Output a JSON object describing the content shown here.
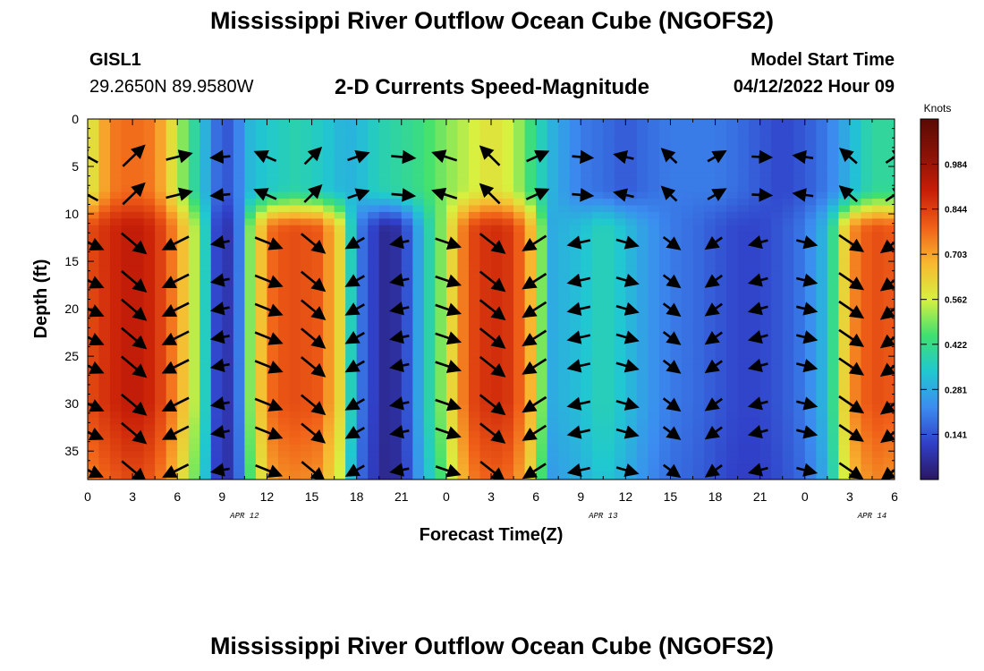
{
  "titles": {
    "main": "Mississippi River Outflow Ocean Cube (NGOFS2)",
    "bottom": "Mississippi River Outflow Ocean Cube (NGOFS2)"
  },
  "station": {
    "id": "GISL1",
    "coords": "29.2650N  89.9580W"
  },
  "model_start": {
    "label": "Model Start Time",
    "value": "04/12/2022 Hour 09"
  },
  "chart_data": {
    "type": "heatmap",
    "title": "2-D Currents Speed-Magnitude",
    "xlabel": "Forecast Time(Z)",
    "ylabel": "Depth (ft)",
    "x_tick_labels": [
      "0",
      "3",
      "6",
      "9",
      "12",
      "15",
      "18",
      "21",
      "0",
      "3",
      "6",
      "9",
      "12",
      "15",
      "18",
      "21",
      "0",
      "3",
      "6"
    ],
    "x_range_hours": [
      0,
      54
    ],
    "date_labels": [
      {
        "label": "APR 12",
        "hour": 10.5
      },
      {
        "label": "APR 13",
        "hour": 34.5
      },
      {
        "label": "APR 14",
        "hour": 52.5
      }
    ],
    "y_ticks": [
      0,
      5,
      10,
      15,
      20,
      25,
      30,
      35
    ],
    "y_range": [
      0,
      38
    ],
    "y_inverted": true,
    "colorbar": {
      "units": "Knots",
      "range": [
        0.0,
        1.125
      ],
      "tick_labels": [
        "0.984",
        "0.844",
        "0.703",
        "0.562",
        "0.422",
        "0.281",
        "0.141"
      ],
      "tick_values": [
        0.984,
        0.844,
        0.703,
        0.562,
        0.422,
        0.281,
        0.141
      ],
      "colors": [
        "#2a1660",
        "#3040c8",
        "#3c8cf0",
        "#20c8d0",
        "#40e070",
        "#d8f040",
        "#f8b830",
        "#f06018",
        "#c81e08",
        "#8a1206",
        "#5a0a04"
      ]
    },
    "speed_profile": {
      "times": [
        0,
        1.5,
        3,
        4.5,
        6,
        7.5,
        8.5,
        9,
        10,
        11,
        12.5,
        14,
        15.5,
        17,
        18,
        19,
        20,
        21,
        22,
        24,
        25.5,
        27,
        28.5,
        30,
        31,
        33,
        34.5,
        36,
        37.5,
        39,
        40.5,
        42,
        43.5,
        45,
        46.5,
        48,
        49.5,
        51,
        52.5,
        54
      ],
      "surface": [
        0.55,
        0.75,
        0.78,
        0.75,
        0.55,
        0.35,
        0.2,
        0.12,
        0.2,
        0.32,
        0.35,
        0.38,
        0.35,
        0.3,
        0.3,
        0.35,
        0.38,
        0.4,
        0.42,
        0.5,
        0.55,
        0.6,
        0.55,
        0.4,
        0.3,
        0.2,
        0.18,
        0.15,
        0.18,
        0.2,
        0.2,
        0.2,
        0.18,
        0.15,
        0.12,
        0.15,
        0.2,
        0.3,
        0.4,
        0.4
      ],
      "deep": [
        0.82,
        0.88,
        0.92,
        0.88,
        0.72,
        0.48,
        0.15,
        0.05,
        0.15,
        0.55,
        0.8,
        0.82,
        0.8,
        0.6,
        0.22,
        0.12,
        0.05,
        0.08,
        0.25,
        0.55,
        0.82,
        0.88,
        0.85,
        0.62,
        0.28,
        0.32,
        0.38,
        0.32,
        0.25,
        0.2,
        0.18,
        0.15,
        0.12,
        0.12,
        0.15,
        0.2,
        0.32,
        0.72,
        0.82,
        0.8
      ]
    },
    "vector_columns_hours": [
      0,
      3,
      6,
      9,
      12,
      15,
      18,
      21,
      24,
      27,
      30,
      33,
      36,
      39,
      42,
      45,
      48,
      51,
      54
    ],
    "vector_rows_ft": [
      4,
      8,
      13,
      17,
      20,
      23,
      26,
      30,
      33,
      37
    ]
  }
}
